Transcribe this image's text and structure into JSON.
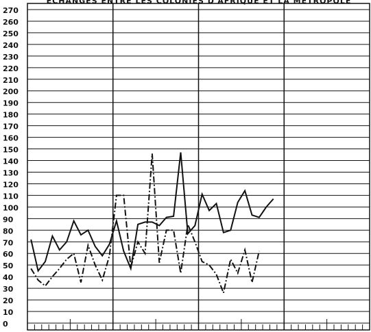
{
  "chart_data": {
    "type": "line",
    "title": "ÉCHANGES ENTRE LES COLONIES D'AFRIQUE ET LA MÉTROPOLE",
    "categories": [
      null,
      null,
      null,
      null,
      null,
      null,
      null,
      null,
      null,
      null,
      null,
      null,
      null,
      null,
      null,
      null,
      null,
      null,
      null,
      null,
      null,
      null,
      null,
      null,
      null,
      null,
      null,
      null,
      null,
      null,
      null,
      null,
      null,
      null,
      null,
      null,
      null,
      null,
      null,
      null,
      null,
      null,
      null,
      null,
      null,
      null,
      null,
      null
    ],
    "series": [
      {
        "color": "#111111",
        "dash": "solid",
        "values": [
          72,
          45,
          53,
          75,
          63,
          70,
          88,
          76,
          80,
          66,
          58,
          68,
          88,
          62,
          47,
          85,
          87,
          87,
          84,
          91,
          92,
          147,
          77,
          84,
          111,
          97,
          103,
          78,
          80,
          104,
          114,
          93,
          91,
          100,
          107,
          null,
          null,
          null,
          null,
          null,
          null,
          null,
          null,
          null,
          null,
          null,
          null,
          null
        ]
      },
      {
        "color": "#111111",
        "dash": "dashdot",
        "values": [
          47,
          37,
          32,
          40,
          47,
          55,
          60,
          35,
          67,
          50,
          37,
          58,
          110,
          110,
          48,
          70,
          60,
          146,
          52,
          80,
          80,
          43,
          85,
          70,
          53,
          50,
          42,
          26,
          55,
          43,
          63,
          35,
          62,
          null,
          null,
          null,
          null,
          null,
          null,
          null,
          null,
          null,
          null,
          null,
          null,
          null,
          null,
          null
        ]
      }
    ],
    "ylim": [
      0,
      270
    ],
    "yticks": [
      0,
      10,
      20,
      30,
      40,
      50,
      60,
      70,
      80,
      90,
      100,
      110,
      120,
      130,
      140,
      150,
      160,
      170,
      180,
      190,
      200,
      210,
      220,
      230,
      240,
      250,
      260,
      270
    ],
    "grid": true
  }
}
